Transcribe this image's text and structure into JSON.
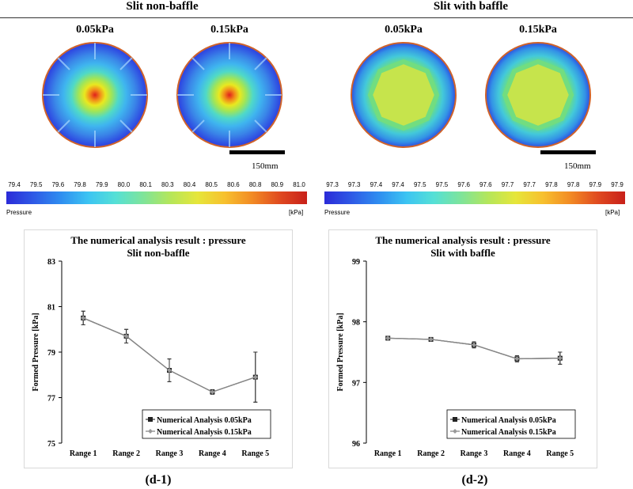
{
  "headers": {
    "left": "Slit non-baffle",
    "right": "Slit with baffle"
  },
  "contours": {
    "left": [
      {
        "label": "0.05kPa"
      },
      {
        "label": "0.15kPa"
      }
    ],
    "right": [
      {
        "label": "0.05kPa"
      },
      {
        "label": "0.15kPa"
      }
    ]
  },
  "scale_bar_label": "150mm",
  "colorbars": {
    "left": {
      "ticks": [
        "79.4",
        "79.5",
        "79.6",
        "79.8",
        "79.9",
        "80.0",
        "80.1",
        "80.3",
        "80.4",
        "80.5",
        "80.6",
        "80.8",
        "80.9",
        "81.0"
      ],
      "name": "Pressure",
      "unit": "[kPa]"
    },
    "right": {
      "ticks": [
        "97.3",
        "97.3",
        "97.4",
        "97.4",
        "97.5",
        "97.5",
        "97.6",
        "97.6",
        "97.7",
        "97.7",
        "97.8",
        "97.8",
        "97.9",
        "97.9"
      ],
      "name": "Pressure",
      "unit": "[kPa]"
    }
  },
  "panel_labels": {
    "left": "(d-1)",
    "right": "(d-2)"
  },
  "chart_data": [
    {
      "type": "line",
      "title": "The numerical analysis result : pressure",
      "subtitle": "Slit non-baffle",
      "ylabel": "Formed Pressure [kPa]",
      "xlabel": "",
      "categories": [
        "Range 1",
        "Range 2",
        "Range 3",
        "Range 4",
        "Range 5"
      ],
      "ylim": [
        75,
        83
      ],
      "yticks": [
        75,
        77,
        79,
        81,
        83
      ],
      "legend_position": "bottom-right",
      "series": [
        {
          "name": "Numerical Analysis 0.05kPa",
          "values": [
            80.5,
            79.7,
            78.2,
            77.25,
            77.9
          ],
          "errors": [
            0.3,
            0.3,
            0.5,
            0.1,
            1.1
          ],
          "color": "#222222"
        },
        {
          "name": "Numerical Analysis 0.15kPa",
          "values": [
            80.5,
            79.7,
            78.2,
            77.25,
            77.9
          ],
          "errors": [
            0.3,
            0.3,
            0.5,
            0.1,
            1.1
          ],
          "color": "#888888"
        }
      ]
    },
    {
      "type": "line",
      "title": "The numerical analysis result : pressure",
      "subtitle": "Slit with baffle",
      "ylabel": "Formed Pressure [kPa]",
      "xlabel": "",
      "categories": [
        "Range 1",
        "Range 2",
        "Range 3",
        "Range 4",
        "Range 5"
      ],
      "ylim": [
        96,
        99
      ],
      "yticks": [
        96,
        97,
        98,
        99
      ],
      "legend_position": "bottom-right",
      "series": [
        {
          "name": "Numerical Analysis 0.05kPa",
          "values": [
            97.73,
            97.71,
            97.62,
            97.39,
            97.4
          ],
          "errors": [
            0.03,
            0.03,
            0.05,
            0.05,
            0.1
          ],
          "color": "#222222"
        },
        {
          "name": "Numerical Analysis 0.15kPa",
          "values": [
            97.73,
            97.71,
            97.62,
            97.39,
            97.4
          ],
          "errors": [
            0.03,
            0.03,
            0.05,
            0.05,
            0.1
          ],
          "color": "#888888"
        }
      ]
    }
  ]
}
